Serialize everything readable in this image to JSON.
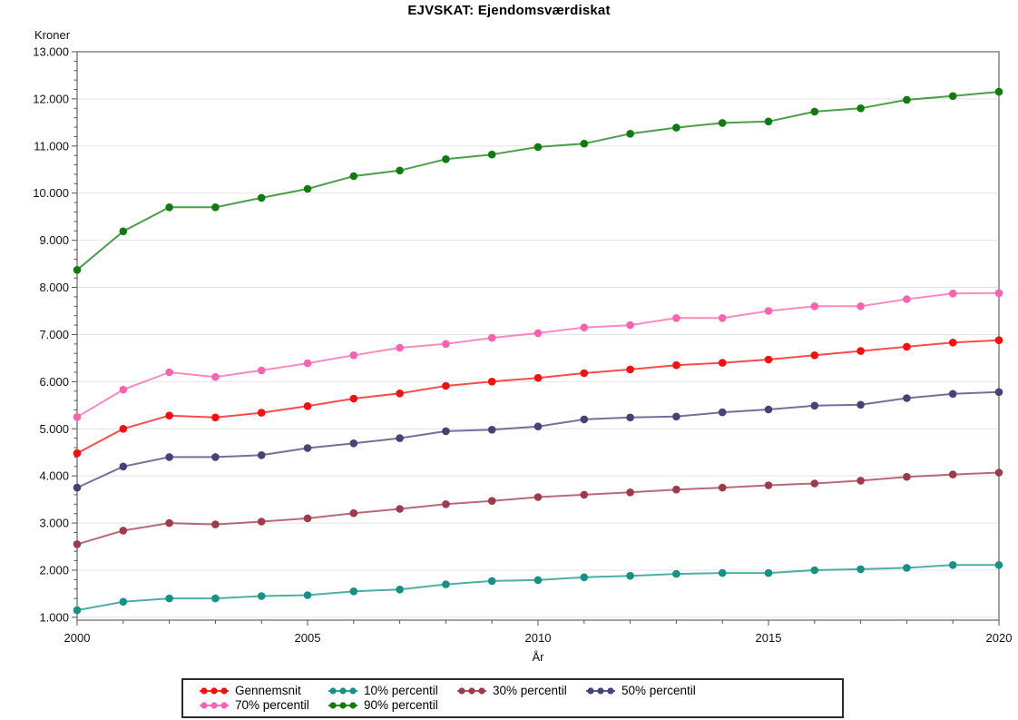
{
  "title": "EJVSKAT: Ejendomsværdiskat",
  "chart_data": {
    "type": "line",
    "title": "EJVSKAT: Ejendomsværdiskat",
    "xlabel": "År",
    "ylabel": "Kroner",
    "xlim": [
      2000,
      2020
    ],
    "ylim": [
      940,
      13000
    ],
    "grid": "horizontal-major-y",
    "legend_position": "bottom",
    "x": [
      2000,
      2001,
      2002,
      2003,
      2004,
      2005,
      2006,
      2007,
      2008,
      2009,
      2010,
      2011,
      2012,
      2013,
      2014,
      2015,
      2016,
      2017,
      2018,
      2019,
      2020
    ],
    "x_major_ticks": [
      {
        "value": 2000,
        "label": "2000"
      },
      {
        "value": 2005,
        "label": "2005"
      },
      {
        "value": 2010,
        "label": "2010"
      },
      {
        "value": 2015,
        "label": "2015"
      },
      {
        "value": 2020,
        "label": "2020"
      }
    ],
    "x_minor_tick_step_years": 1,
    "y_ticks": [
      {
        "value": 1000,
        "label": "1.000"
      },
      {
        "value": 2000,
        "label": "2.000"
      },
      {
        "value": 3000,
        "label": "3.000"
      },
      {
        "value": 4000,
        "label": "4.000"
      },
      {
        "value": 5000,
        "label": "5.000"
      },
      {
        "value": 6000,
        "label": "6.000"
      },
      {
        "value": 7000,
        "label": "7.000"
      },
      {
        "value": 8000,
        "label": "8.000"
      },
      {
        "value": 9000,
        "label": "9.000"
      },
      {
        "value": 10000,
        "label": "10.000"
      },
      {
        "value": 11000,
        "label": "11.000"
      },
      {
        "value": 12000,
        "label": "12.000"
      },
      {
        "value": 13000,
        "label": "13.000"
      }
    ],
    "y_minor_tick_step": 200,
    "series": [
      {
        "name": "Gennemsnit",
        "color": "#f50f0f",
        "values": [
          4480,
          5000,
          5280,
          5240,
          5340,
          5480,
          5640,
          5750,
          5910,
          6000,
          6080,
          6180,
          6260,
          6350,
          6400,
          6470,
          6560,
          6650,
          6740,
          6830,
          6880
        ]
      },
      {
        "name": "10% percentil",
        "color": "#169185",
        "values": [
          1150,
          1330,
          1400,
          1400,
          1450,
          1470,
          1550,
          1590,
          1700,
          1770,
          1790,
          1850,
          1880,
          1920,
          1940,
          1940,
          2000,
          2020,
          2050,
          2110,
          2110
        ]
      },
      {
        "name": "30% percentil",
        "color": "#9e3a4c",
        "values": [
          2550,
          2840,
          3000,
          2970,
          3030,
          3100,
          3210,
          3300,
          3400,
          3470,
          3550,
          3600,
          3650,
          3710,
          3750,
          3800,
          3840,
          3900,
          3980,
          4030,
          4070
        ]
      },
      {
        "name": "50% percentil",
        "color": "#434377",
        "values": [
          3750,
          4200,
          4400,
          4400,
          4440,
          4590,
          4690,
          4800,
          4950,
          4980,
          5050,
          5200,
          5240,
          5260,
          5350,
          5410,
          5490,
          5510,
          5650,
          5740,
          5780
        ]
      },
      {
        "name": "70% percentil",
        "color": "#f763ae",
        "values": [
          5250,
          5830,
          6200,
          6100,
          6240,
          6390,
          6560,
          6720,
          6800,
          6930,
          7030,
          7150,
          7200,
          7350,
          7350,
          7500,
          7600,
          7600,
          7750,
          7870,
          7880
        ]
      },
      {
        "name": "90% percentil",
        "color": "#107c10",
        "values": [
          8370,
          9190,
          9700,
          9700,
          9900,
          10090,
          10360,
          10480,
          10720,
          10820,
          10980,
          11050,
          11260,
          11390,
          11490,
          11520,
          11730,
          11800,
          11980,
          12060,
          12150
        ]
      }
    ]
  },
  "style": {
    "frame_color": "#8c8c8c",
    "gridline_color": "#e4e4e4",
    "tick_color": "#555555"
  }
}
